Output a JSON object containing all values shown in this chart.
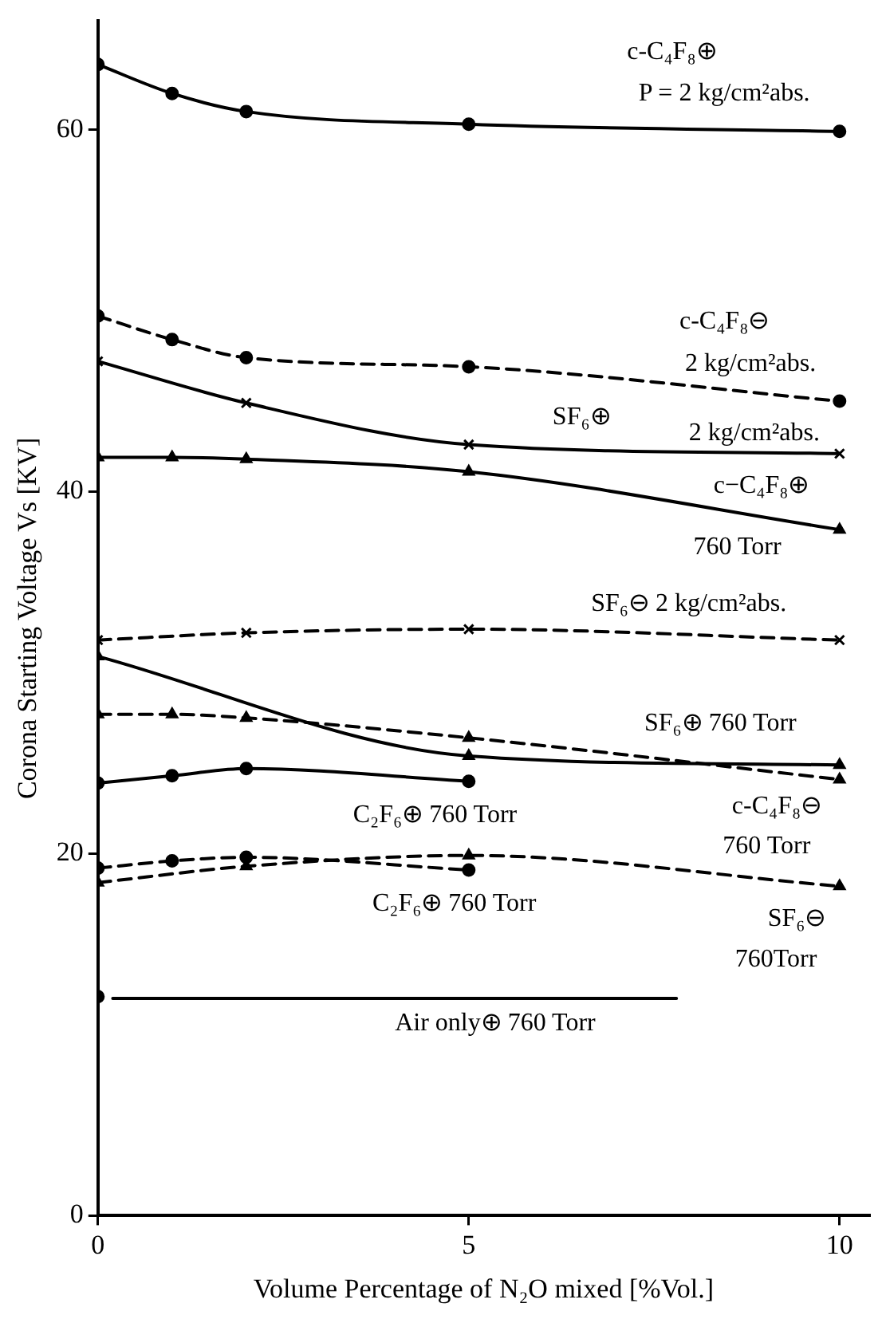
{
  "chart_data": {
    "type": "line",
    "xlabel": "Volume Percentage of N₂O mixed [%Vol.]",
    "ylabel": "Corona Starting Voltage Vs [KV]",
    "xlim": [
      0,
      10.4
    ],
    "xticks": [
      0,
      5,
      10
    ],
    "ylim": [
      0,
      66
    ],
    "yticks": [
      0,
      20,
      40,
      60
    ],
    "grid": false,
    "legend": false,
    "series": [
      {
        "color": "#000000",
        "x": [
          0,
          1,
          2,
          5,
          10
        ],
        "values": [
          63.6,
          62.0,
          61.0,
          60.3,
          59.9
        ],
        "marker": "circle",
        "line_style": "solid"
      },
      {
        "color": "#000000",
        "x": [
          0,
          1,
          2,
          5,
          10
        ],
        "values": [
          49.7,
          48.4,
          47.4,
          46.9,
          45.0
        ],
        "marker": "circle",
        "line_style": "dashed"
      },
      {
        "color": "#000000",
        "x": [
          0,
          2,
          5,
          10
        ],
        "values": [
          47.2,
          44.9,
          42.6,
          42.1
        ],
        "marker": "cross",
        "line_style": "solid"
      },
      {
        "color": "#000000",
        "x": [
          0,
          1,
          2,
          5,
          10
        ],
        "values": [
          41.9,
          41.9,
          41.8,
          41.1,
          37.9
        ],
        "marker": "triangle",
        "line_style": "solid"
      },
      {
        "color": "#000000",
        "x": [
          0,
          2,
          5,
          10
        ],
        "values": [
          31.8,
          32.2,
          32.4,
          31.8
        ],
        "marker": "cross",
        "line_style": "dashed"
      },
      {
        "color": "#000000",
        "x": [
          0,
          5,
          10
        ],
        "values": [
          30.9,
          25.4,
          24.9
        ],
        "marker": "triangle",
        "line_style": "solid"
      },
      {
        "color": "#000000",
        "x": [
          0,
          1,
          2,
          5,
          10
        ],
        "values": [
          27.7,
          27.7,
          27.5,
          26.4,
          24.1
        ],
        "marker": "triangle",
        "line_style": "dashed"
      },
      {
        "color": "#000000",
        "x": [
          0,
          1,
          2,
          5
        ],
        "values": [
          23.9,
          24.3,
          24.7,
          24.0
        ],
        "marker": "circle",
        "line_style": "solid"
      },
      {
        "color": "#000000",
        "x": [
          0,
          1,
          2,
          5
        ],
        "values": [
          19.2,
          19.6,
          19.8,
          19.1
        ],
        "marker": "circle",
        "line_style": "dashed"
      },
      {
        "color": "#000000",
        "x": [
          0,
          2,
          5,
          10
        ],
        "values": [
          18.4,
          19.3,
          19.9,
          18.2
        ],
        "marker": "triangle",
        "line_style": "dashed"
      },
      {
        "color": "#000000",
        "x": [
          0.2,
          7.8
        ],
        "values": [
          12.0,
          12.0
        ],
        "marker": "none",
        "line_style": "solid"
      },
      {
        "type": "scatter",
        "color": "#000000",
        "x": [
          0
        ],
        "values": [
          12.1
        ],
        "marker": "circle"
      }
    ],
    "annotations": [
      "c-C₄F₈⊕",
      "P = 2 kg/cm²abs.",
      "c-C₄F₈⊖",
      "2 kg/cm²abs.",
      "SF₆⊕",
      "2 kg/cm²abs.",
      "c−C₄F₈⊕",
      "760 Torr",
      "SF₆⊖ 2 kg/cm²abs.",
      "SF₆⊕ 760 Torr",
      "c-C₄F₈⊖",
      "760 Torr",
      "C₂F₆⊕ 760 Torr",
      "C₂F₆⊕ 760 Torr",
      "SF₆⊖",
      "760Torr",
      "Air only⊕ 760 Torr"
    ]
  }
}
